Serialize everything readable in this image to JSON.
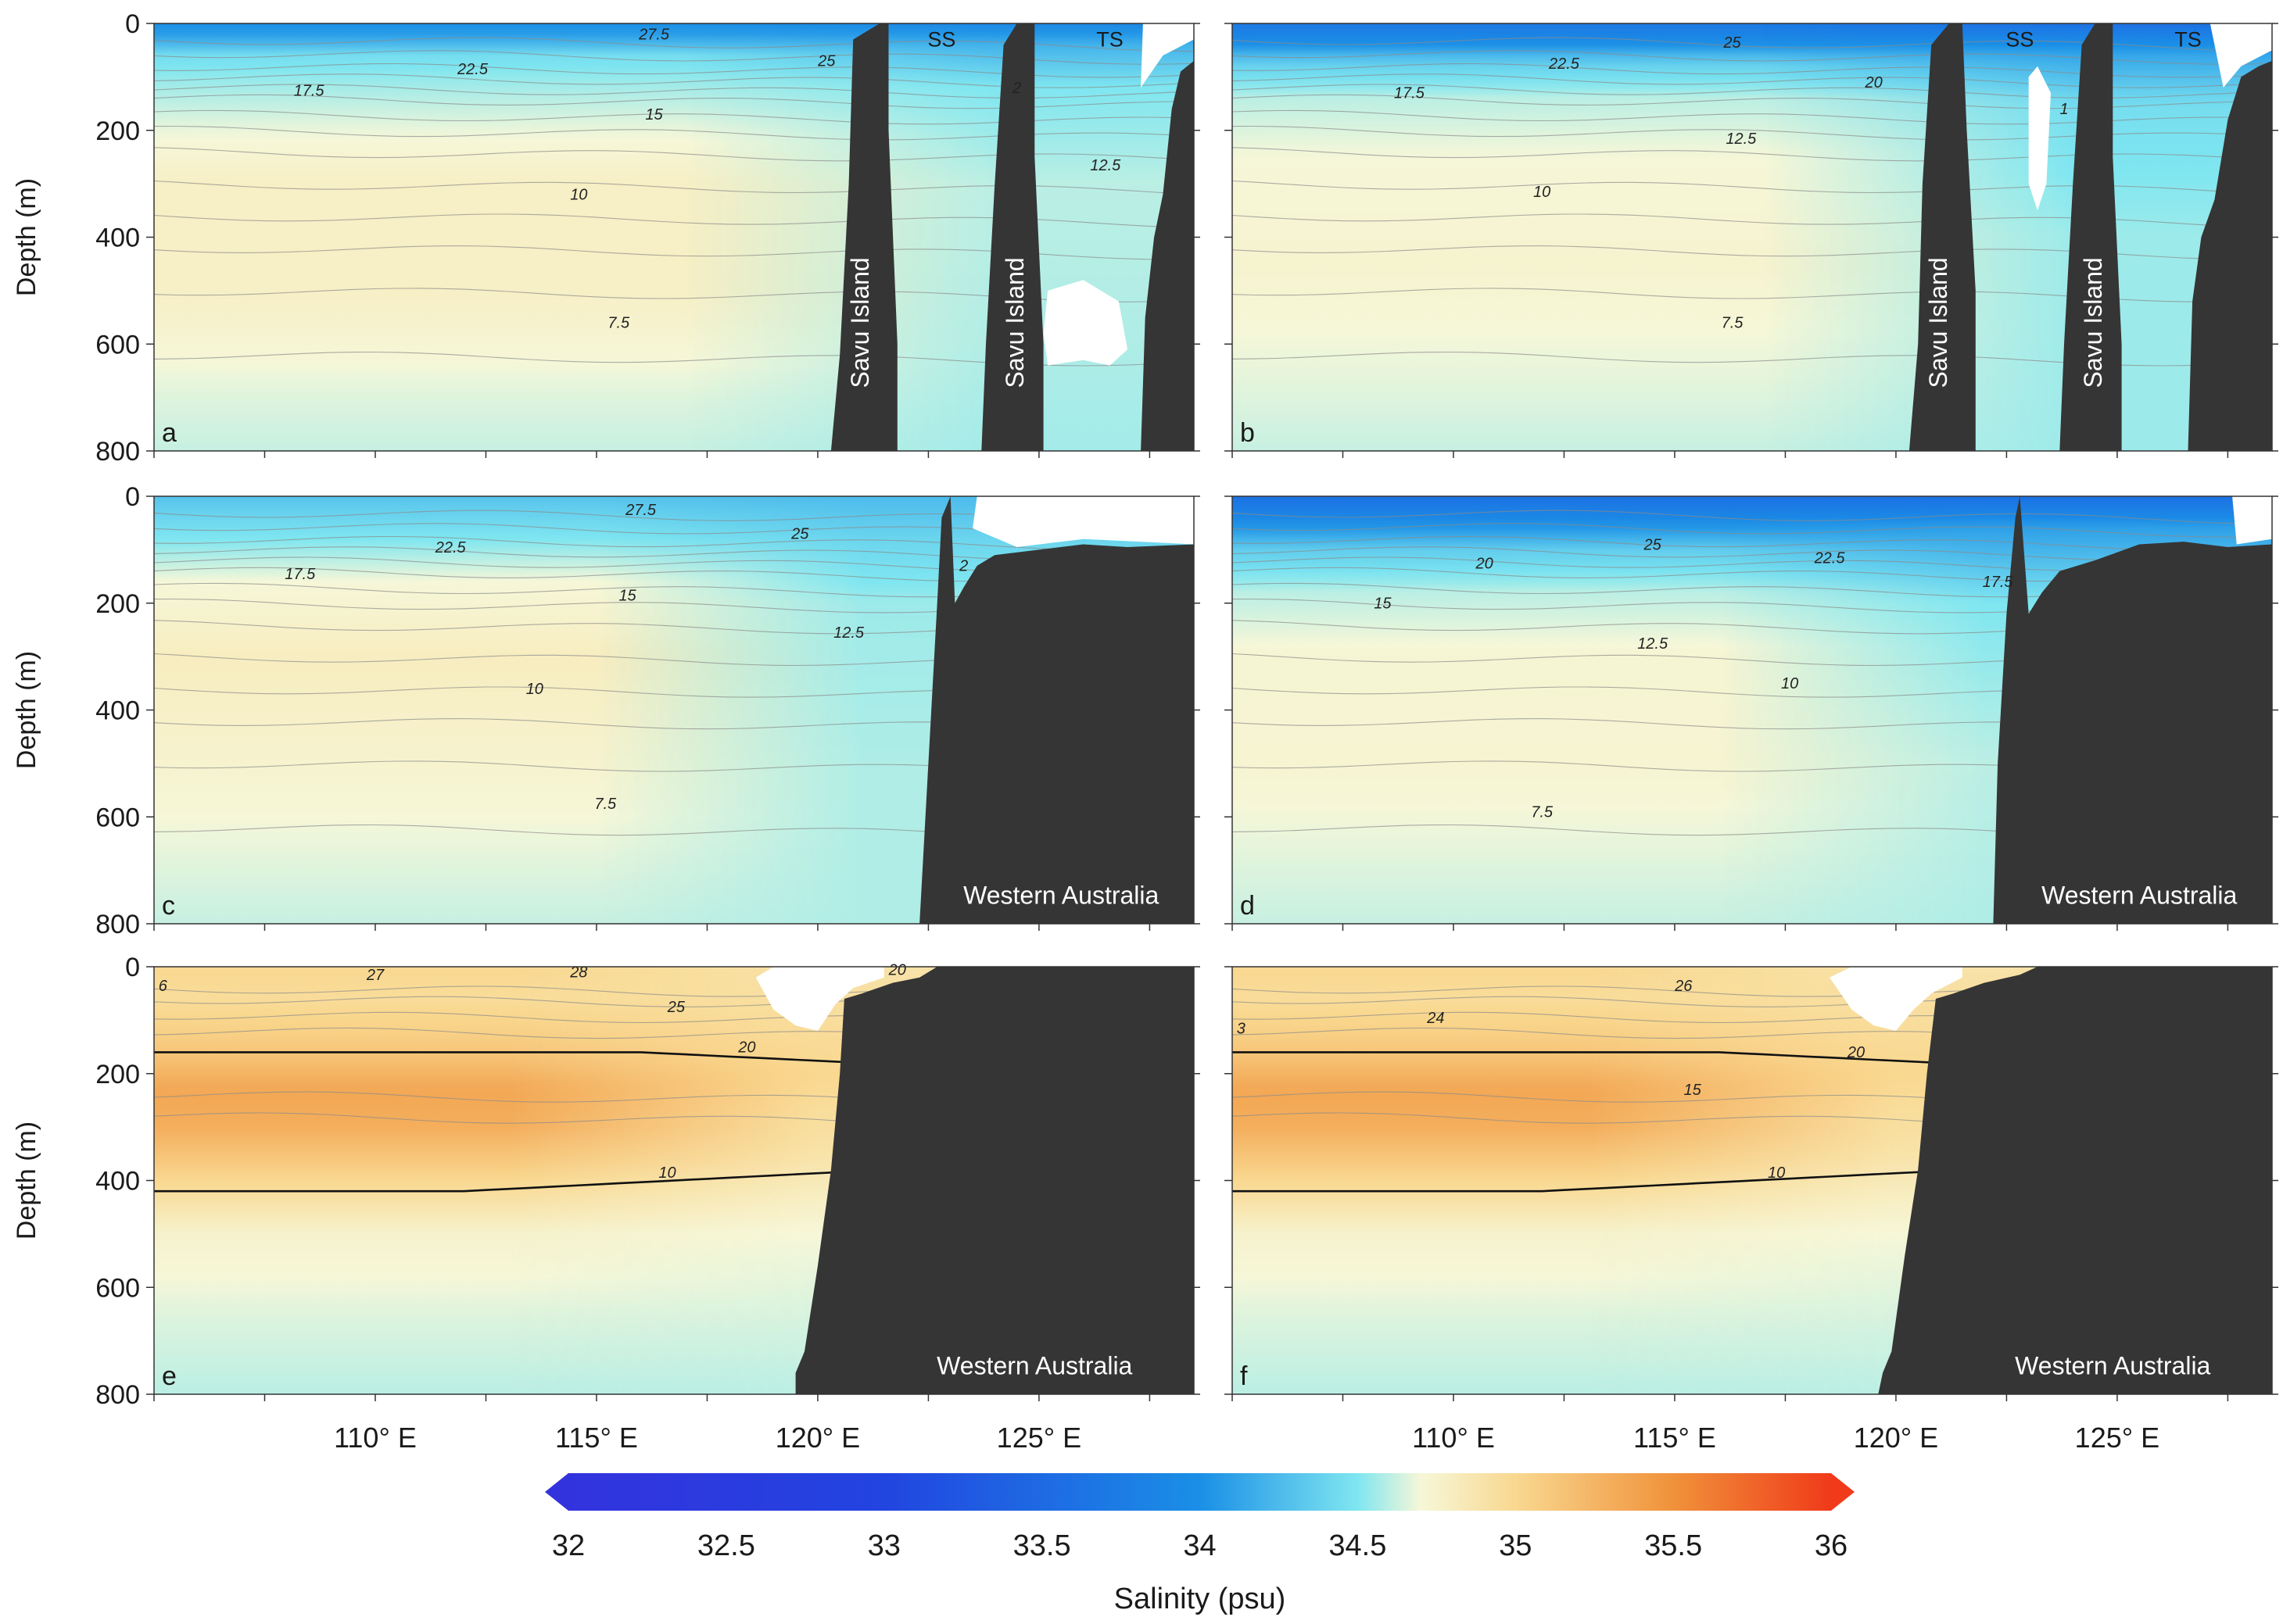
{
  "chart_data": {
    "type": "heatmap",
    "description_units": "section plots of salinity vs longitude and depth with temperature contours",
    "colorscale": {
      "label": "Salinity (psu)",
      "min": 32,
      "max": 36,
      "ticks": [
        32,
        32.5,
        33,
        33.5,
        34,
        34.5,
        35,
        35.5,
        36
      ],
      "tick_labels": [
        "32",
        "32.5",
        "33",
        "33.5",
        "34",
        "34.5",
        "35",
        "35.5",
        "36"
      ],
      "stops": [
        {
          "value": 32,
          "color": "#3333dd"
        },
        {
          "value": 33,
          "color": "#2244e0"
        },
        {
          "value": 34,
          "color": "#1a8fe6"
        },
        {
          "value": 34.5,
          "color": "#7fe6f0"
        },
        {
          "value": 34.7,
          "color": "#f6f7d8"
        },
        {
          "value": 35,
          "color": "#f9d890"
        },
        {
          "value": 35.5,
          "color": "#f0923a"
        },
        {
          "value": 36,
          "color": "#f03a1a"
        }
      ]
    },
    "x_axis": {
      "unit": "degrees E",
      "range": [
        105,
        128.5
      ],
      "ticks": [
        110,
        115,
        120,
        125
      ],
      "tick_labels": [
        "110° E",
        "115° E",
        "120° E",
        "125° E"
      ]
    },
    "y_axis": {
      "label": "Depth (m)",
      "range": [
        0,
        800
      ],
      "ticks": [
        0,
        200,
        400,
        600,
        800
      ],
      "tick_labels": [
        "0",
        "200",
        "400",
        "600",
        "800"
      ]
    },
    "panels": [
      {
        "id": "a",
        "panel_label": "a",
        "land_labels": [
          {
            "text": "Savu Island",
            "lon": 121.0,
            "depth": 560,
            "vertical": true
          },
          {
            "text": "Savu Island",
            "lon": 124.5,
            "depth": 560,
            "vertical": true
          }
        ],
        "strait_labels": [
          {
            "text": "SS",
            "lon": 122.8,
            "depth": 30
          },
          {
            "text": "TS",
            "lon": 126.6,
            "depth": 30
          }
        ],
        "contour_labels": [
          {
            "text": "27.5",
            "lon": 116.3,
            "depth": 30
          },
          {
            "text": "25",
            "lon": 120.2,
            "depth": 80
          },
          {
            "text": "22.5",
            "lon": 112.2,
            "depth": 95
          },
          {
            "text": "17.5",
            "lon": 108.5,
            "depth": 135
          },
          {
            "text": "15",
            "lon": 116.3,
            "depth": 180
          },
          {
            "text": "2",
            "lon": 124.5,
            "depth": 130
          },
          {
            "text": "12.5",
            "lon": 126.5,
            "depth": 275
          },
          {
            "text": "10",
            "lon": 114.6,
            "depth": 330
          },
          {
            "text": "7.5",
            "lon": 115.5,
            "depth": 570
          }
        ]
      },
      {
        "id": "b",
        "panel_label": "b",
        "land_labels": [
          {
            "text": "Savu Island",
            "lon": 121.0,
            "depth": 560,
            "vertical": true
          },
          {
            "text": "Savu Island",
            "lon": 124.5,
            "depth": 560,
            "vertical": true
          }
        ],
        "strait_labels": [
          {
            "text": "SS",
            "lon": 122.8,
            "depth": 30
          },
          {
            "text": "TS",
            "lon": 126.6,
            "depth": 30
          }
        ],
        "contour_labels": [
          {
            "text": "25",
            "lon": 116.3,
            "depth": 45
          },
          {
            "text": "22.5",
            "lon": 112.5,
            "depth": 85
          },
          {
            "text": "20",
            "lon": 119.5,
            "depth": 120
          },
          {
            "text": "17.5",
            "lon": 109.0,
            "depth": 140
          },
          {
            "text": "1",
            "lon": 123.8,
            "depth": 170
          },
          {
            "text": "12.5",
            "lon": 116.5,
            "depth": 225
          },
          {
            "text": "10",
            "lon": 112.0,
            "depth": 325
          },
          {
            "text": "7.5",
            "lon": 116.3,
            "depth": 570
          }
        ]
      },
      {
        "id": "c",
        "panel_label": "c",
        "land_labels": [
          {
            "text": "Western Australia",
            "lon": 125.5,
            "depth": 745,
            "vertical": false
          }
        ],
        "strait_labels": [],
        "contour_labels": [
          {
            "text": "27.5",
            "lon": 116.0,
            "depth": 35
          },
          {
            "text": "25",
            "lon": 119.6,
            "depth": 80
          },
          {
            "text": "22.5",
            "lon": 111.7,
            "depth": 105
          },
          {
            "text": "17.5",
            "lon": 108.3,
            "depth": 155
          },
          {
            "text": "15",
            "lon": 115.7,
            "depth": 195
          },
          {
            "text": "2",
            "lon": 123.3,
            "depth": 140
          },
          {
            "text": "12.5",
            "lon": 120.7,
            "depth": 265
          },
          {
            "text": "10",
            "lon": 113.6,
            "depth": 370
          },
          {
            "text": "7.5",
            "lon": 115.2,
            "depth": 585
          }
        ]
      },
      {
        "id": "d",
        "panel_label": "d",
        "land_labels": [
          {
            "text": "Western Australia",
            "lon": 125.5,
            "depth": 745,
            "vertical": false
          }
        ],
        "strait_labels": [],
        "contour_labels": [
          {
            "text": "25",
            "lon": 114.5,
            "depth": 100
          },
          {
            "text": "20",
            "lon": 110.7,
            "depth": 135
          },
          {
            "text": "22.5",
            "lon": 118.5,
            "depth": 125
          },
          {
            "text": "17.5",
            "lon": 122.3,
            "depth": 170
          },
          {
            "text": "15",
            "lon": 108.4,
            "depth": 210
          },
          {
            "text": "12.5",
            "lon": 114.5,
            "depth": 285
          },
          {
            "text": "10",
            "lon": 117.6,
            "depth": 360
          },
          {
            "text": "7.5",
            "lon": 112.0,
            "depth": 600
          }
        ]
      },
      {
        "id": "e",
        "panel_label": "e",
        "land_labels": [
          {
            "text": "Western Australia",
            "lon": 124.9,
            "depth": 745,
            "vertical": false
          }
        ],
        "strait_labels": [],
        "contour_labels": [
          {
            "text": "6",
            "lon": 105.2,
            "depth": 45
          },
          {
            "text": "27",
            "lon": 110.0,
            "depth": 25
          },
          {
            "text": "28",
            "lon": 114.6,
            "depth": 20
          },
          {
            "text": "25",
            "lon": 116.8,
            "depth": 85
          },
          {
            "text": "20",
            "lon": 118.4,
            "depth": 160
          },
          {
            "text": "20",
            "lon": 121.8,
            "depth": 15
          },
          {
            "text": "10",
            "lon": 116.6,
            "depth": 395
          }
        ]
      },
      {
        "id": "f",
        "panel_label": "f",
        "land_labels": [
          {
            "text": "Western Australia",
            "lon": 124.9,
            "depth": 745,
            "vertical": false
          }
        ],
        "strait_labels": [],
        "contour_labels": [
          {
            "text": "3",
            "lon": 105.2,
            "depth": 125
          },
          {
            "text": "24",
            "lon": 109.6,
            "depth": 105
          },
          {
            "text": "26",
            "lon": 115.2,
            "depth": 45
          },
          {
            "text": "20",
            "lon": 119.1,
            "depth": 170
          },
          {
            "text": "15",
            "lon": 115.4,
            "depth": 240
          },
          {
            "text": "10",
            "lon": 117.3,
            "depth": 395
          }
        ]
      }
    ]
  },
  "colors": {
    "land": "#353535",
    "nodata": "#ffffff",
    "contour_thin": "#8a8a8a",
    "contour_bold": "#111111"
  }
}
